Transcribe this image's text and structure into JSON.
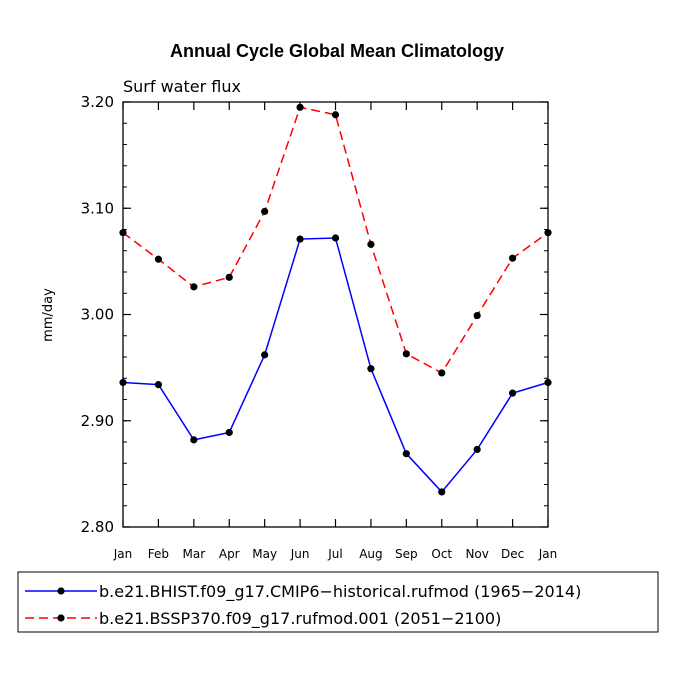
{
  "chart_data": {
    "type": "line",
    "title": "Annual Cycle Global Mean Climatology",
    "subtitle": "Surf water flux",
    "xlabel": "",
    "ylabel": "mm/day",
    "categories": [
      "Jan",
      "Feb",
      "Mar",
      "Apr",
      "May",
      "Jun",
      "Jul",
      "Aug",
      "Sep",
      "Oct",
      "Nov",
      "Dec",
      "Jan"
    ],
    "ylim": [
      2.8,
      3.2
    ],
    "yticks": [
      2.8,
      2.9,
      3.0,
      3.1,
      3.2
    ],
    "ytick_labels": [
      "2.80",
      "2.90",
      "3.00",
      "3.10",
      "3.20"
    ],
    "grid": false,
    "legend_position": "bottom",
    "series": [
      {
        "name": "b.e21.BHIST.f09_g17.CMIP6−historical.rufmod (1965−2014)",
        "color": "#0000ff",
        "dashed": false,
        "values": [
          2.936,
          2.934,
          2.882,
          2.889,
          2.962,
          3.071,
          3.072,
          2.949,
          2.869,
          2.833,
          2.873,
          2.926,
          2.936
        ]
      },
      {
        "name": "b.e21.BSSP370.f09_g17.rufmod.001 (2051−2100)",
        "color": "#ff0000",
        "dashed": true,
        "values": [
          3.077,
          3.052,
          3.026,
          3.035,
          3.097,
          3.195,
          3.188,
          3.066,
          2.963,
          2.945,
          2.999,
          3.053,
          3.077
        ]
      }
    ]
  }
}
